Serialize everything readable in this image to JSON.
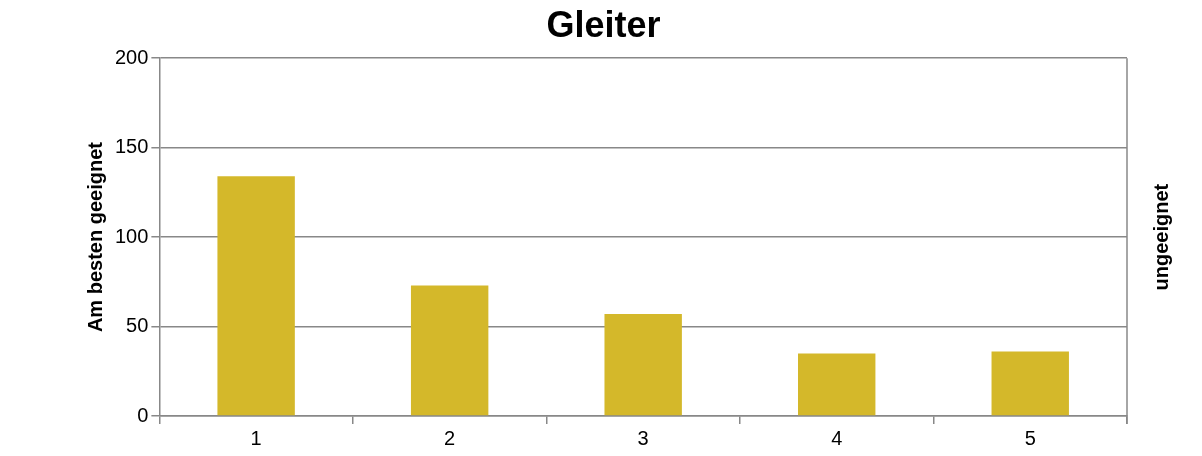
{
  "chart_data": {
    "type": "bar",
    "title": "Gleiter",
    "ylabel": "Am besten geeignet",
    "y2label": "ungeeignet",
    "categories": [
      "1",
      "2",
      "3",
      "4",
      "5"
    ],
    "values": [
      134,
      73,
      57,
      35,
      36
    ],
    "color": "#d4b82a",
    "ylim": [
      0,
      200
    ],
    "yticks": [
      0,
      50,
      100,
      150,
      200
    ],
    "grid": "y"
  }
}
